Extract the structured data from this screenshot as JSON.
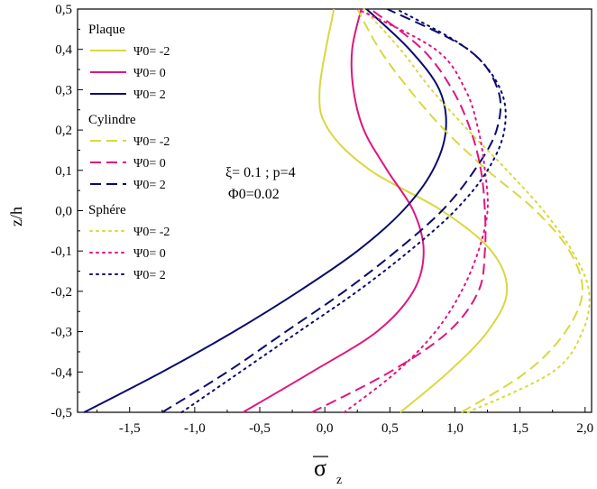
{
  "chart_data": {
    "type": "line",
    "title": "",
    "xlabel": "σz",
    "ylabel": "z/h",
    "xlim": [
      -1.9,
      2.05
    ],
    "ylim": [
      -0.5,
      0.5
    ],
    "x_ticks": [
      "-1,5",
      "-1,0",
      "-0,5",
      "0,0",
      "0,5",
      "1,0",
      "1,5",
      "2,0"
    ],
    "x_tick_values": [
      -1.5,
      -1.0,
      -0.5,
      0.0,
      0.5,
      1.0,
      1.5,
      2.0
    ],
    "y_ticks": [
      "-0,5",
      "-0,4",
      "-0,3",
      "-0,2",
      "-0,1",
      "0,0",
      "0,1",
      "0,2",
      "0,3",
      "0,4",
      "0,5"
    ],
    "y_tick_values": [
      -0.5,
      -0.4,
      -0.3,
      -0.2,
      -0.1,
      0.0,
      0.1,
      0.2,
      0.3,
      0.4,
      0.5
    ],
    "annotation": {
      "line1": "ξ= 0.1 ; p=4",
      "line2": "Φ0=0.02"
    },
    "legend": {
      "position": "top-left",
      "groups": [
        {
          "title": "Plaque",
          "entries": [
            "Ψ0= -2",
            "Ψ0= 0",
            "Ψ0= 2"
          ],
          "style": "solid"
        },
        {
          "title": "Cylindre",
          "entries": [
            "Ψ0= -2",
            "Ψ0= 0",
            "Ψ0= 2"
          ],
          "style": "dashed"
        },
        {
          "title": "Sphére",
          "entries": [
            "Ψ0= -2",
            "Ψ0= 0",
            "Ψ0= 2"
          ],
          "style": "dotted"
        }
      ]
    },
    "colors": {
      "psi_m2": "#d8d840",
      "psi_0": "#e0157f",
      "psi_2": "#0a0a6e"
    },
    "series": [
      {
        "name": "Plaque Ψ0=-2",
        "style": "solid",
        "color": "#d8d840",
        "x": [
          0.58,
          0.95,
          1.25,
          1.4,
          1.28,
          0.9,
          0.35,
          0.03,
          -0.04,
          0.07
        ],
        "y": [
          -0.5,
          -0.4,
          -0.3,
          -0.2,
          -0.1,
          0.0,
          0.1,
          0.2,
          0.3,
          0.5
        ]
      },
      {
        "name": "Plaque Ψ0=0",
        "style": "solid",
        "color": "#e0157f",
        "x": [
          -0.63,
          -0.1,
          0.4,
          0.68,
          0.76,
          0.68,
          0.48,
          0.3,
          0.22,
          0.21,
          0.28
        ],
        "y": [
          -0.5,
          -0.4,
          -0.3,
          -0.2,
          -0.1,
          0.0,
          0.1,
          0.2,
          0.3,
          0.4,
          0.5
        ]
      },
      {
        "name": "Plaque Ψ0=2",
        "style": "solid",
        "color": "#0a0a6e",
        "x": [
          -1.85,
          -1.25,
          -0.7,
          -0.2,
          0.25,
          0.6,
          0.83,
          0.93,
          0.88,
          0.65,
          0.32
        ],
        "y": [
          -0.5,
          -0.4,
          -0.3,
          -0.2,
          -0.1,
          0.0,
          0.1,
          0.2,
          0.3,
          0.4,
          0.5
        ]
      },
      {
        "name": "Cylindre Ψ0=-2",
        "style": "dashed",
        "color": "#d8d840",
        "x": [
          1.05,
          1.55,
          1.85,
          1.98,
          1.88,
          1.62,
          1.25,
          0.92,
          0.65,
          0.42,
          0.25
        ],
        "y": [
          -0.5,
          -0.4,
          -0.3,
          -0.2,
          -0.1,
          0.0,
          0.1,
          0.2,
          0.3,
          0.4,
          0.5
        ]
      },
      {
        "name": "Cylindre Ψ0=0",
        "style": "dashed",
        "color": "#e0157f",
        "x": [
          -0.1,
          0.5,
          0.95,
          1.18,
          1.23,
          1.23,
          1.2,
          1.12,
          0.98,
          0.75,
          0.35
        ],
        "y": [
          -0.5,
          -0.4,
          -0.3,
          -0.2,
          -0.1,
          0.0,
          0.1,
          0.2,
          0.3,
          0.4,
          0.5
        ]
      },
      {
        "name": "Cylindre Ψ0=2",
        "style": "dashed",
        "color": "#0a0a6e",
        "x": [
          -1.25,
          -0.75,
          -0.3,
          0.15,
          0.55,
          0.9,
          1.15,
          1.32,
          1.33,
          1.1,
          0.48
        ],
        "y": [
          -0.5,
          -0.4,
          -0.3,
          -0.2,
          -0.1,
          0.0,
          0.1,
          0.2,
          0.3,
          0.4,
          0.5
        ]
      },
      {
        "name": "Sphére Ψ0=-2",
        "style": "dotted",
        "color": "#d8d840",
        "x": [
          1.1,
          1.75,
          1.98,
          2.03,
          1.9,
          1.68,
          1.4,
          1.1,
          0.82,
          0.58,
          0.3
        ],
        "y": [
          -0.5,
          -0.4,
          -0.3,
          -0.2,
          -0.1,
          0.0,
          0.1,
          0.2,
          0.3,
          0.4,
          0.5
        ]
      },
      {
        "name": "Sphére Ψ0=0",
        "style": "dotted",
        "color": "#e0157f",
        "x": [
          0.15,
          0.55,
          0.85,
          1.05,
          1.18,
          1.25,
          1.23,
          1.18,
          1.08,
          0.85,
          0.25
        ],
        "y": [
          -0.5,
          -0.4,
          -0.3,
          -0.2,
          -0.1,
          0.0,
          0.1,
          0.2,
          0.3,
          0.4,
          0.5
        ]
      },
      {
        "name": "Sphére Ψ0=2",
        "style": "dotted",
        "color": "#0a0a6e",
        "x": [
          -1.1,
          -0.65,
          -0.2,
          0.25,
          0.65,
          1.0,
          1.25,
          1.38,
          1.35,
          1.1,
          0.55
        ],
        "y": [
          -0.5,
          -0.4,
          -0.3,
          -0.2,
          -0.1,
          0.0,
          0.1,
          0.2,
          0.3,
          0.4,
          0.5
        ]
      }
    ]
  }
}
